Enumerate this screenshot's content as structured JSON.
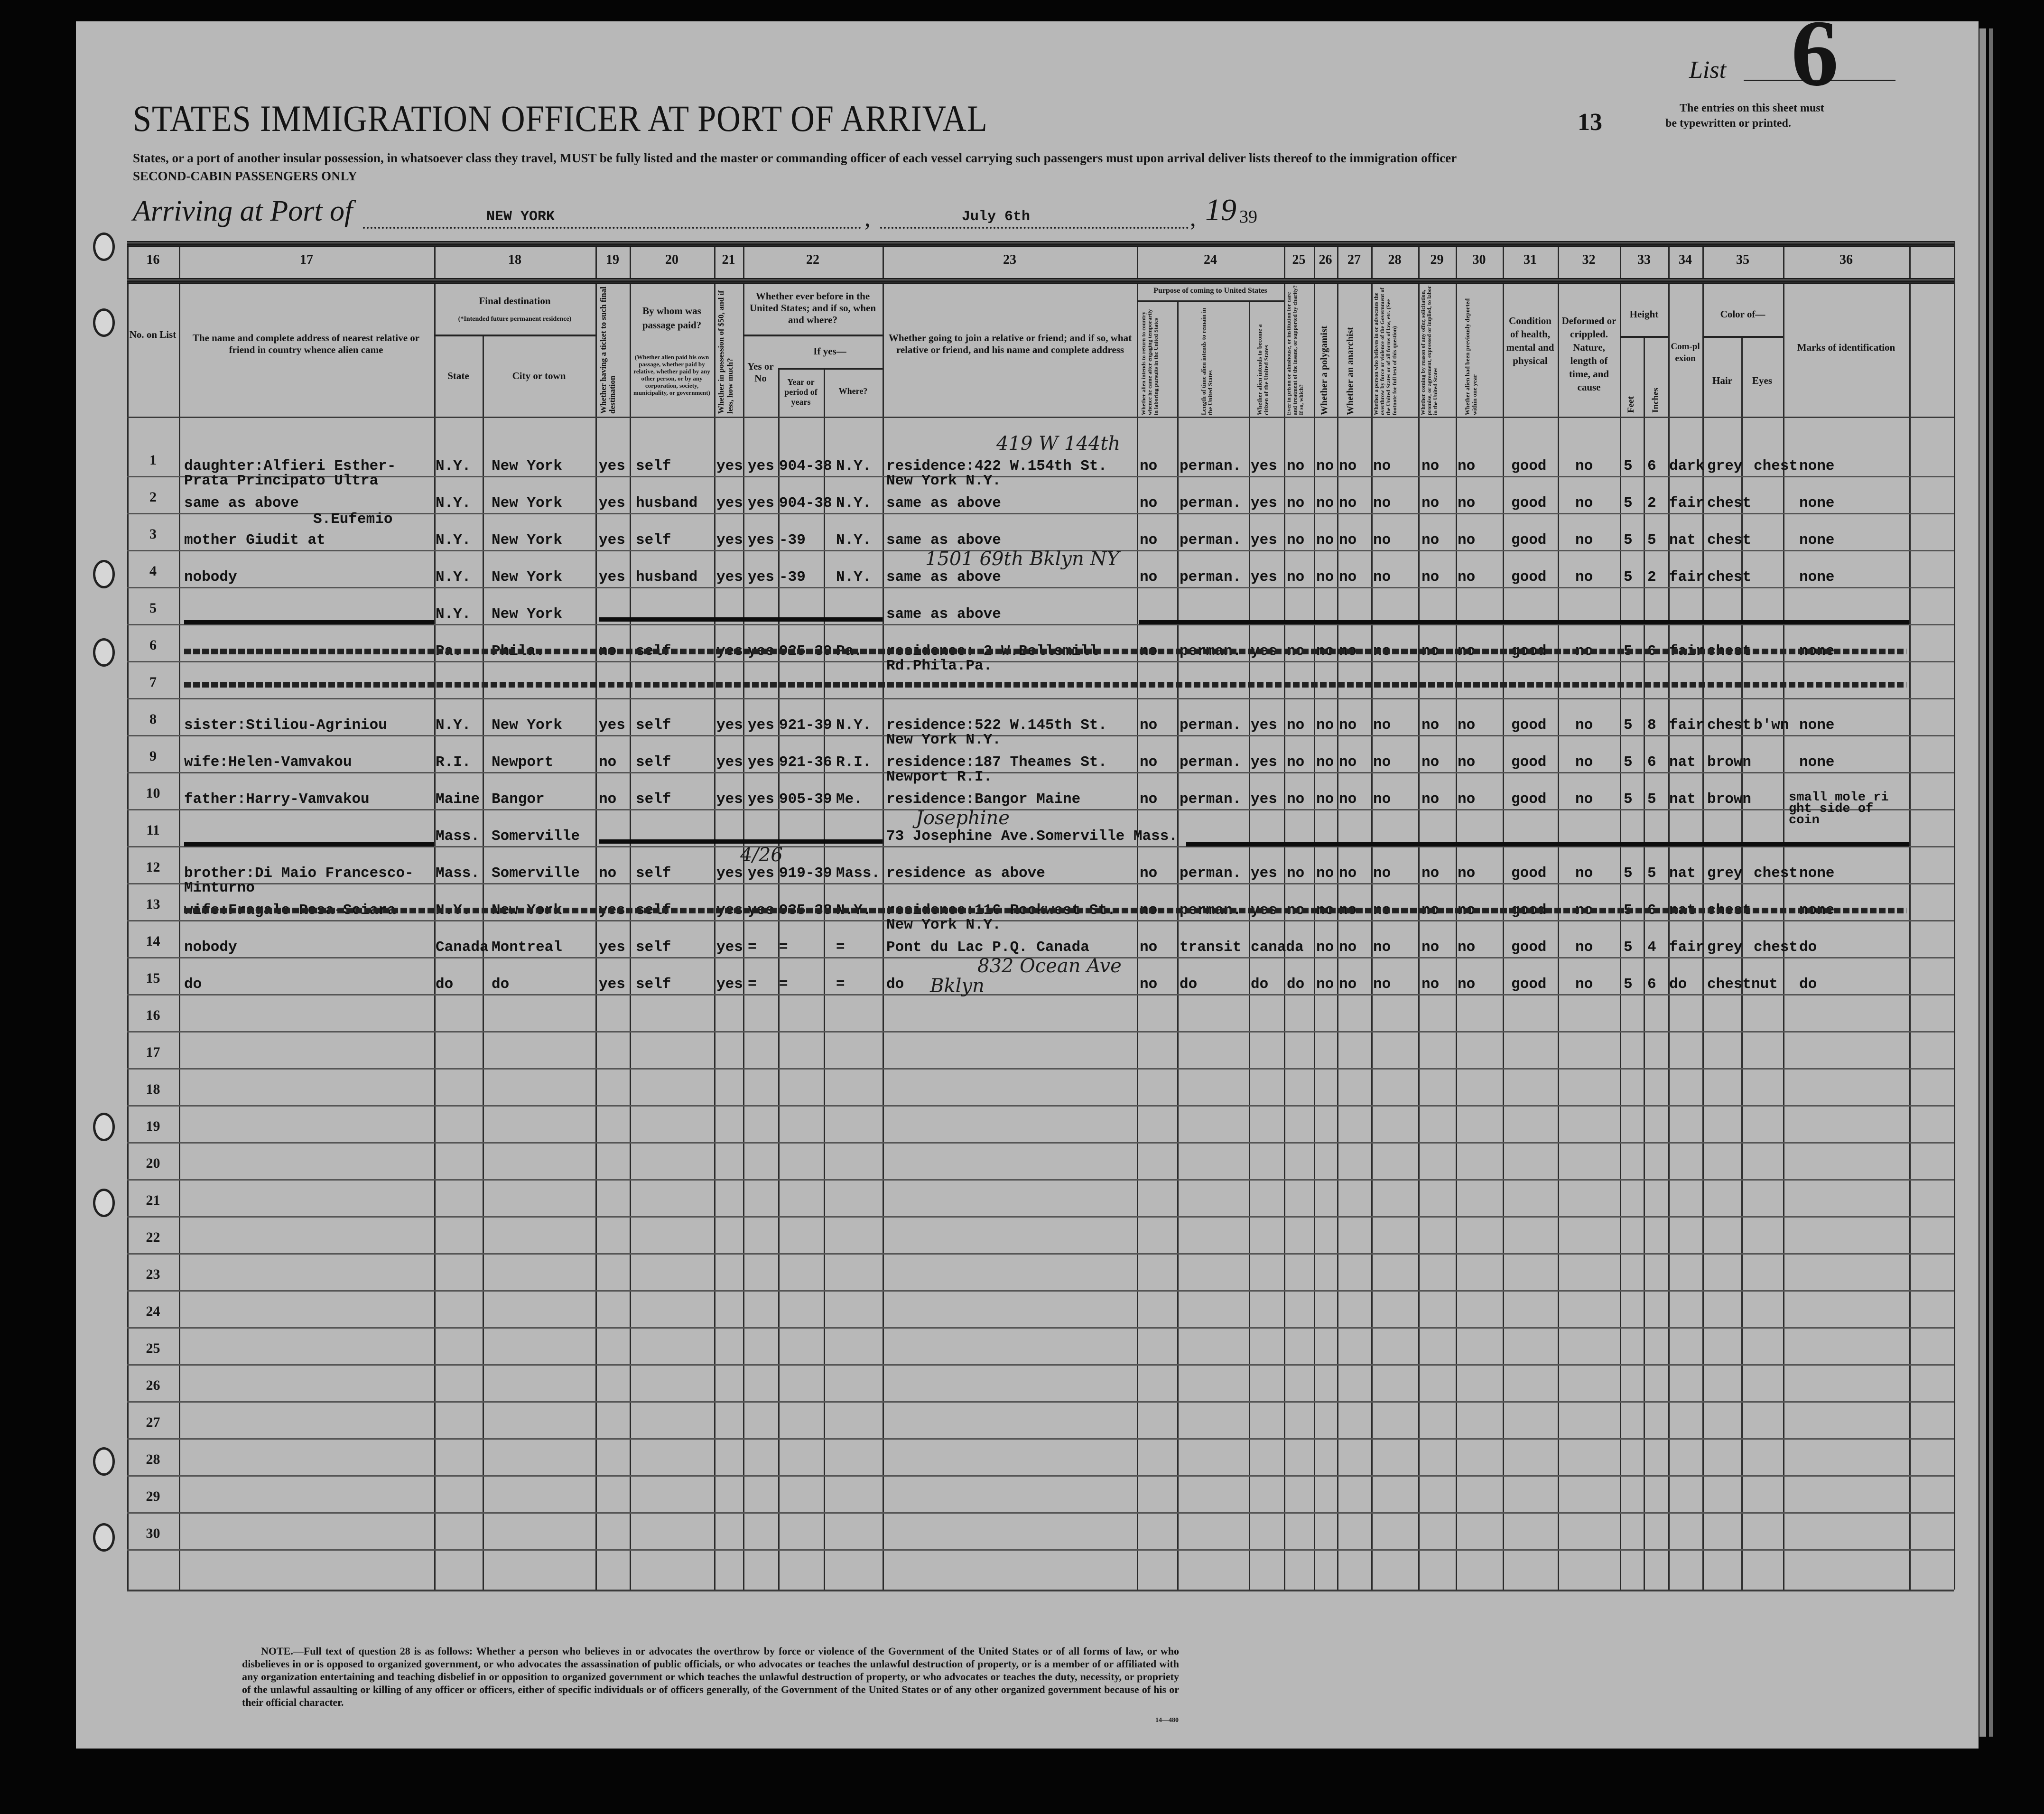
{
  "header": {
    "title": "STATES IMMIGRATION OFFICER AT PORT OF ARRIVAL",
    "instructions": "States, or a port of another insular possession, in whatsoever class they travel, MUST be fully listed and the master or commanding officer of each vessel carrying such passengers must upon arrival deliver lists thereof to the immigration officer",
    "cabin": "SECOND-CABIN PASSENGERS ONLY",
    "arriving_label": "Arriving at Port of",
    "port": "NEW YORK",
    "date": "July 6th",
    "year_prefix": "19",
    "year_suffix": "39",
    "sheet_number": "13",
    "list_label": "List",
    "list_number": "6",
    "entries_note_1": "The entries on this sheet must",
    "entries_note_2": "be typewritten or printed."
  },
  "column_numbers": [
    "16",
    "17",
    "18",
    "19",
    "20",
    "21",
    "22",
    "23",
    "24",
    "25",
    "26",
    "27",
    "28",
    "29",
    "30",
    "31",
    "32",
    "33",
    "34",
    "35",
    "36"
  ],
  "column_labels": {
    "no": "No. on List",
    "rel": "The name and complete address of nearest relative or friend in country whence alien came",
    "dest": "Final destination",
    "dest_note": "(*Intended future permanent residence)",
    "state": "State",
    "city": "City or town",
    "ticket": "Whether having a ticket to such final destination",
    "paid": "By whom was passage paid?",
    "paid_note": "(Whether alien paid his own passage, whether paid by relative, whether paid by any other person, or by any corporation, society, municipality, or government)",
    "money": "Whether in possession of $50, and if less, how much?",
    "before": "Whether ever before in the United States; and if so, when and where?",
    "yesno": "Yes or No",
    "ifyes": "If yes—",
    "period": "Year or period of years",
    "where": "Where?",
    "join": "Whether going to join a relative or friend; and if so, what relative or friend, and his name and complete address",
    "purpose": "Purpose of coming to United States",
    "p_return": "Whether alien intends to return to country whence he came after engaging temporarily in laboring pursuits in the United States",
    "p_length": "Length of time alien intends to remain in the United States",
    "p_citizen": "Whether alien intends to become a citizen of the United States",
    "c25": "Ever in prison or almshouse, or institution for care and treatment of the insane, or supported by charity? If so, which?",
    "c26": "Whether a polygamist",
    "c27": "Whether an anarchist",
    "c28": "Whether a person who believes in or advocates the overthrow by force or violence of the Government of the United States or of all forms of law, etc. (See footnote for full text of this question)",
    "c29": "Whether coming by reason of any offer, solicitation, promise, or agreement, expressed or implied, to labor in the United States",
    "c30": "Whether alien had been previously deported within one year",
    "health": "Condition of health, mental and physical",
    "deformed": "Deformed or crippled. Nature, length of time, and cause",
    "height": "Height",
    "feet": "Feet",
    "inches": "Inches",
    "complexion": "Com-plexion",
    "color": "Color of—",
    "hair": "Hair",
    "eyes": "Eyes",
    "marks": "Marks of identification"
  },
  "rows": [
    {
      "no": "1",
      "rel": "daughter:Alfieri Esther-\nPrata Principato Ultra",
      "state": "N.Y.",
      "city": "New York",
      "ticket": "yes",
      "paid": "self",
      "money": "yes",
      "before": "yes",
      "years": "904-38",
      "where": "N.Y.",
      "join": "residence:422 W.154th St.\nNew York N.Y.",
      "p_return": "no",
      "p_length": "perman.",
      "p_citizen": "yes",
      "c25": "no",
      "c26": "no",
      "c27": "no",
      "c28": "no",
      "c29": "no",
      "c30": "no",
      "health": "good",
      "deformed": "no",
      "feet": "5",
      "inches": "6",
      "complexion": "dark",
      "hair": "grey",
      "eyes": "chest",
      "marks": "none"
    },
    {
      "no": "2",
      "rel": "same as above",
      "state": "N.Y.",
      "city": "New York",
      "ticket": "yes",
      "paid": "husband",
      "money": "yes",
      "before": "yes",
      "years": "904-38",
      "where": "N.Y.",
      "join": "same as above",
      "p_return": "no",
      "p_length": "perman.",
      "p_citizen": "yes",
      "c25": "no",
      "c26": "no",
      "c27": "no",
      "c28": "no",
      "c29": "no",
      "c30": "no",
      "health": "good",
      "deformed": "no",
      "feet": "5",
      "inches": "2",
      "complexion": "fair",
      "hair": "chest",
      "eyes": "",
      "marks": "none"
    },
    {
      "no": "3",
      "rel_above": "S.Eufemio",
      "rel": "mother Giudit at",
      "state": "N.Y.",
      "city": "New York",
      "ticket": "yes",
      "paid": "self",
      "money": "yes",
      "before": "yes",
      "years": "-39",
      "where": "N.Y.",
      "join": "same as above",
      "p_return": "no",
      "p_length": "perman.",
      "p_citizen": "yes",
      "c25": "no",
      "c26": "no",
      "c27": "no",
      "c28": "no",
      "c29": "no",
      "c30": "no",
      "health": "good",
      "deformed": "no",
      "feet": "5",
      "inches": "5",
      "complexion": "nat",
      "hair": "chest",
      "eyes": "",
      "marks": "none"
    },
    {
      "no": "4",
      "rel": "nobody",
      "state": "N.Y.",
      "city": "New York",
      "ticket": "yes",
      "paid": "husband",
      "money": "yes",
      "before": "yes",
      "years": "-39",
      "where": "N.Y.",
      "join": "same as above",
      "p_return": "no",
      "p_length": "perman.",
      "p_citizen": "yes",
      "c25": "no",
      "c26": "no",
      "c27": "no",
      "c28": "no",
      "c29": "no",
      "c30": "no",
      "health": "good",
      "deformed": "no",
      "feet": "5",
      "inches": "2",
      "complexion": "fair",
      "hair": "chest",
      "eyes": "",
      "marks": "none"
    },
    {
      "no": "5",
      "state": "N.Y.",
      "city": "New York",
      "join": "same as above",
      "ruled_out": true
    },
    {
      "no": "6",
      "struck": true,
      "state": "Pa.",
      "city": "Phila.",
      "ticket": "no",
      "paid": "self",
      "money": "yes",
      "before": "yes",
      "years": "925-39",
      "where": "Pa.",
      "join": "residence: 2 W.Bellsmill\nRd.Phila.Pa.",
      "p_return": "no",
      "p_length": "perman.",
      "p_citizen": "yes",
      "c25": "no",
      "c26": "no",
      "c27": "no",
      "c28": "no",
      "c29": "no",
      "c30": "no",
      "health": "good",
      "deformed": "no",
      "feet": "5",
      "inches": "6",
      "complexion": "fair",
      "hair": "chest",
      "eyes": "",
      "marks": "none"
    },
    {
      "no": "7",
      "struck_full": true
    },
    {
      "no": "8",
      "rel": "sister:Stiliou-Agriniou",
      "state": "N.Y.",
      "city": "New York",
      "ticket": "yes",
      "paid": "self",
      "money": "yes",
      "before": "yes",
      "years": "921-39",
      "where": "N.Y.",
      "join": "residence:522 W.145th St.\nNew York N.Y.",
      "p_return": "no",
      "p_length": "perman.",
      "p_citizen": "yes",
      "c25": "no",
      "c26": "no",
      "c27": "no",
      "c28": "no",
      "c29": "no",
      "c30": "no",
      "health": "good",
      "deformed": "no",
      "feet": "5",
      "inches": "8",
      "complexion": "fair",
      "hair": "chest",
      "eyes": "b'wn",
      "marks": "none"
    },
    {
      "no": "9",
      "rel": "wife:Helen-Vamvakou",
      "state": "R.I.",
      "city": "Newport",
      "ticket": "no",
      "paid": "self",
      "money": "yes",
      "before": "yes",
      "years": "921-36",
      "where": "R.I.",
      "join": "residence:187 Theames St.\nNewport R.I.",
      "p_return": "no",
      "p_length": "perman.",
      "p_citizen": "yes",
      "c25": "no",
      "c26": "no",
      "c27": "no",
      "c28": "no",
      "c29": "no",
      "c30": "no",
      "health": "good",
      "deformed": "no",
      "feet": "5",
      "inches": "6",
      "complexion": "nat",
      "hair": "brown",
      "eyes": "",
      "marks": "none"
    },
    {
      "no": "10",
      "rel": "father:Harry-Vamvakou",
      "state": "Maine",
      "city": "Bangor",
      "ticket": "no",
      "paid": "self",
      "money": "yes",
      "before": "yes",
      "years": "905-39",
      "where": "Me.",
      "join": "residence:Bangor Maine",
      "p_return": "no",
      "p_length": "perman.",
      "p_citizen": "yes",
      "c25": "no",
      "c26": "no",
      "c27": "no",
      "c28": "no",
      "c29": "no",
      "c30": "no",
      "health": "good",
      "deformed": "no",
      "feet": "5",
      "inches": "5",
      "complexion": "nat",
      "hair": "brown",
      "eyes": "",
      "marks": "small mole ri\nght side of\ncoin"
    },
    {
      "no": "11",
      "state": "Mass.",
      "city": "Somerville",
      "join": "73 Josephine Ave.Somerville Mass.",
      "ruled_out": true
    },
    {
      "no": "12",
      "rel": "brother:Di Maio Francesco-\nMinturno",
      "state": "Mass.",
      "city": "Somerville",
      "ticket": "no",
      "paid": "self",
      "money": "yes",
      "before": "yes",
      "years": "919-39",
      "where": "Mass.",
      "join": "residence as above",
      "p_return": "no",
      "p_length": "perman.",
      "p_citizen": "yes",
      "c25": "no",
      "c26": "no",
      "c27": "no",
      "c28": "no",
      "c29": "no",
      "c30": "no",
      "health": "good",
      "deformed": "no",
      "feet": "5",
      "inches": "5",
      "complexion": "nat",
      "hair": "grey",
      "eyes": "chest",
      "marks": "none"
    },
    {
      "no": "13",
      "struck": true,
      "rel": "wife:Fragale Rosa-Sciara",
      "state": "N.Y.",
      "city": "New York",
      "ticket": "yes",
      "paid": "self",
      "money": "yes",
      "before": "yes",
      "years": "935-38",
      "where": "N.Y.",
      "join": "residence:116 Rockwest St.\nNew York N.Y.",
      "p_return": "no",
      "p_length": "perman.",
      "p_citizen": "yes",
      "c25": "no",
      "c26": "no",
      "c27": "no",
      "c28": "no",
      "c29": "no",
      "c30": "no",
      "health": "good",
      "deformed": "no",
      "feet": "5",
      "inches": "6",
      "complexion": "nat",
      "hair": "chest",
      "eyes": "",
      "marks": "none"
    },
    {
      "no": "14",
      "rel": "nobody",
      "state": "Canada",
      "city": "Montreal",
      "ticket": "yes",
      "paid": "self",
      "money": "yes",
      "before": "=",
      "years": "=",
      "where": "=",
      "join": "Pont du Lac P.Q. Canada",
      "p_return": "no",
      "p_length": "transit",
      "p_citizen": "canada",
      "c25": "",
      "c26": "no",
      "c27": "no",
      "c28": "no",
      "c29": "no",
      "c30": "no",
      "health": "good",
      "deformed": "no",
      "feet": "5",
      "inches": "4",
      "complexion": "fair",
      "hair": "grey",
      "eyes": "chest",
      "marks": "do"
    },
    {
      "no": "15",
      "rel": "do",
      "state": "do",
      "city": "do",
      "ticket": "yes",
      "paid": "self",
      "money": "yes",
      "before": "=",
      "years": "=",
      "where": "=",
      "join": "do",
      "p_return": "no",
      "p_length": "do",
      "p_citizen": "do",
      "c25": "do",
      "c26": "no",
      "c27": "no",
      "c28": "no",
      "c29": "no",
      "c30": "no",
      "health": "good",
      "deformed": "no",
      "feet": "5",
      "inches": "6",
      "complexion": "do",
      "hair": "chestnut",
      "eyes": "",
      "marks": "do"
    },
    {
      "no": "16"
    },
    {
      "no": "17"
    },
    {
      "no": "18"
    },
    {
      "no": "19"
    },
    {
      "no": "20"
    },
    {
      "no": "21"
    },
    {
      "no": "22"
    },
    {
      "no": "23"
    },
    {
      "no": "24"
    },
    {
      "no": "25"
    },
    {
      "no": "26"
    },
    {
      "no": "27"
    },
    {
      "no": "28"
    },
    {
      "no": "29"
    },
    {
      "no": "30"
    }
  ],
  "handwritten_annotations": [
    "419 W 144th",
    "1501 69th Bklyn NY",
    "Josephine",
    "4/26",
    "832 Ocean Ave",
    "Bklyn"
  ],
  "footnote": {
    "text": "NOTE.—Full text of question 28 is as follows: Whether a person who believes in or advocates the overthrow by force or violence of the Government of the United States or of all forms of law, or who disbelieves in or is opposed to organized government, or who advocates the assassination of public officials, or who advocates or teaches the unlawful destruction of property, or is a member of or affiliated with any organization entertaining and teaching disbelief in or opposition to organized government or which teaches the unlawful destruction of property, or who advocates or teaches the duty, necessity, or propriety of the unlawful assaulting or killing of any officer or officers, either of specific individuals or of officers generally, of the Government of the United States or of any other organized government because of his or their official character.",
    "form_number": "14—480"
  }
}
